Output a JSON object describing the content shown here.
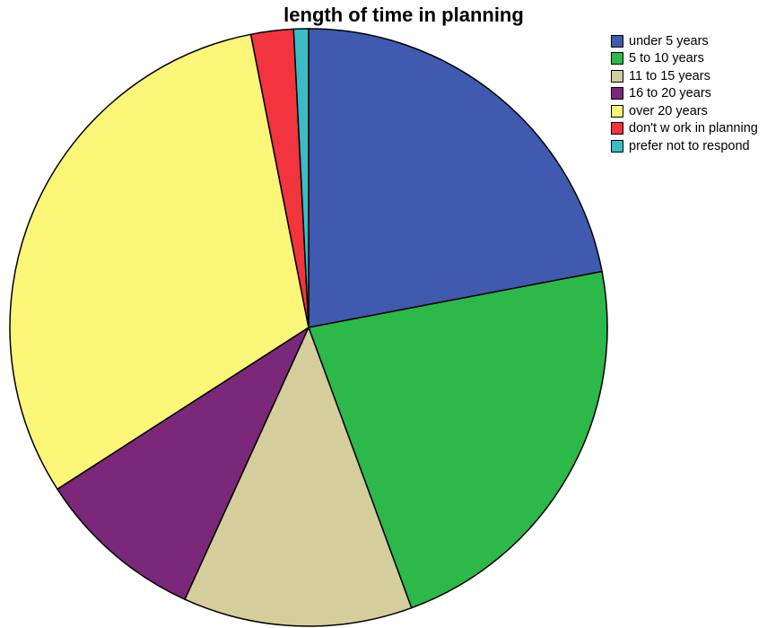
{
  "chart_data": {
    "type": "pie",
    "title": "length of time in planning",
    "start": "12 o'clock",
    "direction": "clockwise",
    "legend_position": "top-right",
    "slices": [
      {
        "label": "under 5 years",
        "value": 22.0,
        "color": "#3f5aaf"
      },
      {
        "label": "5 to 10 years",
        "value": 22.4,
        "color": "#2db84a"
      },
      {
        "label": "11 to 15 years",
        "value": 12.4,
        "color": "#d3ce9b"
      },
      {
        "label": "16 to 20 years",
        "value": 9.1,
        "color": "#7b287b"
      },
      {
        "label": "over 20 years",
        "value": 31.0,
        "color": "#fbf677"
      },
      {
        "label": "don't w ork in planning",
        "value": 2.3,
        "color": "#f1343d"
      },
      {
        "label": "prefer not to respond",
        "value": 0.8,
        "color": "#3bbcc5"
      }
    ]
  }
}
